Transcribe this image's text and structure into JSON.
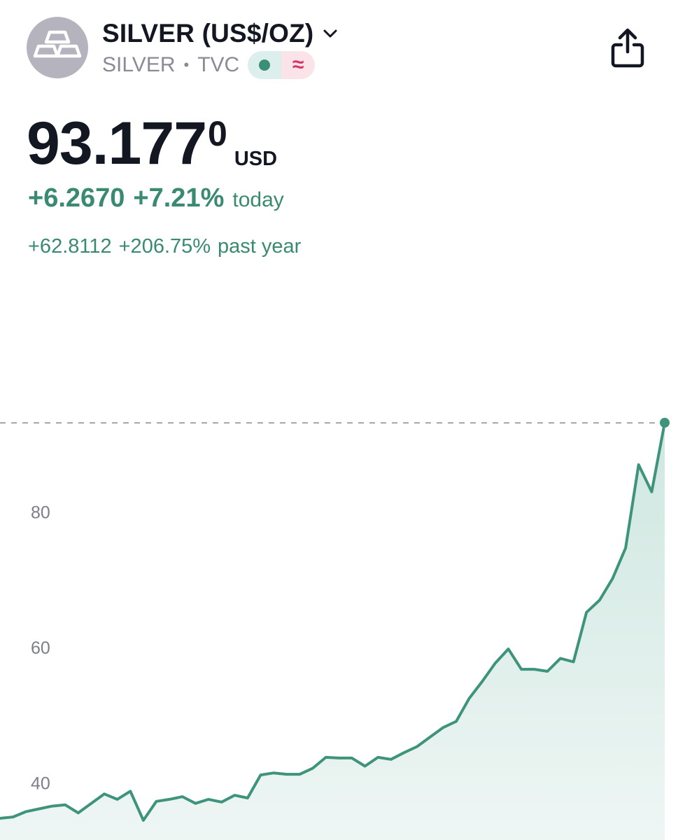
{
  "header": {
    "symbol_title": "SILVER (US$/OZ)",
    "symbol": "SILVER",
    "separator": "•",
    "exchange": "TVC",
    "status_icons": [
      "market-open-dot-icon",
      "delayed-data-icon"
    ],
    "delayed_glyph": "≈",
    "share_icon": "share-icon",
    "avatar_icon": "silver-bars-icon"
  },
  "quote": {
    "price_main": "93.177",
    "price_superscript": "0",
    "currency": "USD",
    "change_today_abs": "+6.2670",
    "change_today_pct": "+7.21%",
    "change_today_label": "today",
    "change_year_abs": "+62.8112",
    "change_year_pct": "+206.75%",
    "change_year_label": "past year"
  },
  "colors": {
    "positive": "#3a8a72",
    "line": "#3d947a",
    "area_top": "#cfe7e0",
    "area_bottom": "#eef6f4",
    "delayed": "#d6336c"
  },
  "chart_data": {
    "type": "area",
    "y_ticks": [
      "80",
      "60",
      "40"
    ],
    "y_tick_values": [
      80,
      60,
      40
    ],
    "last_value_reference_line": 93.177,
    "x": [
      0,
      1,
      2,
      3,
      4,
      5,
      6,
      7,
      8,
      9,
      10,
      11,
      12,
      13,
      14,
      15,
      16,
      17,
      18,
      19,
      20,
      21,
      22,
      23,
      24,
      25,
      26,
      27,
      28,
      29,
      30,
      31,
      32,
      33,
      34,
      35,
      36,
      37,
      38,
      39,
      40,
      41,
      42,
      43,
      44,
      45,
      46,
      47,
      48,
      49,
      50,
      51
    ],
    "values": [
      34.8,
      35.0,
      35.8,
      36.2,
      36.6,
      36.8,
      35.6,
      37.0,
      38.4,
      37.6,
      38.8,
      34.5,
      37.3,
      37.6,
      38.0,
      37.0,
      37.6,
      37.2,
      38.2,
      37.8,
      41.2,
      41.5,
      41.3,
      41.3,
      42.2,
      43.8,
      43.7,
      43.7,
      42.5,
      43.8,
      43.5,
      44.5,
      45.4,
      46.8,
      48.2,
      49.1,
      52.5,
      55.0,
      57.7,
      59.8,
      56.8,
      56.8,
      56.5,
      58.4,
      57.9,
      65.2,
      67.0,
      70.2,
      74.7,
      87.0,
      83.0,
      93.2
    ],
    "ylim": [
      31.6,
      106
    ],
    "grid": false,
    "legend": "none"
  }
}
